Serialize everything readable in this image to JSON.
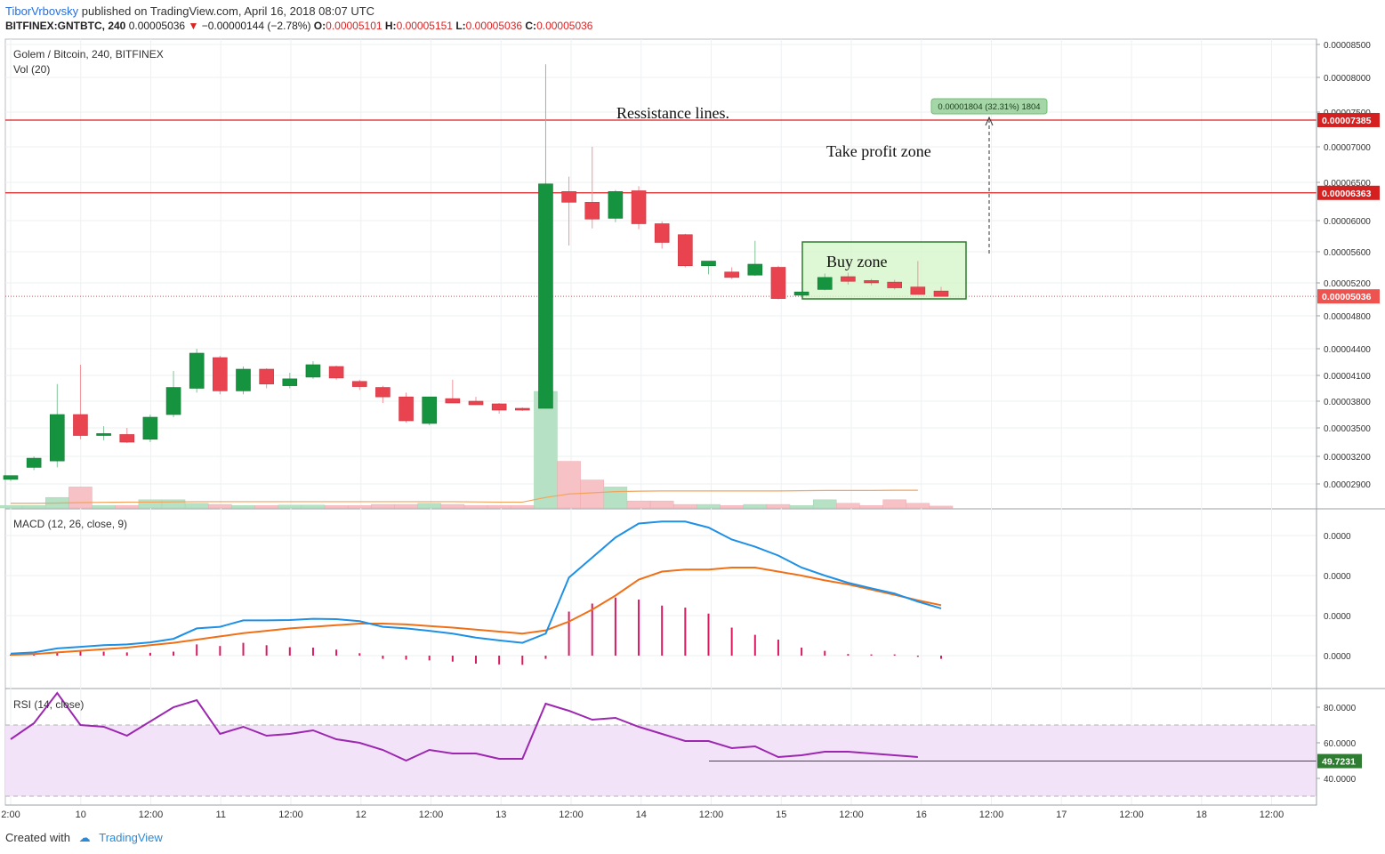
{
  "header": {
    "author": "TiborVrbovsky",
    "published_text": "published on TradingView.com, April 16, 2018 08:07 UTC",
    "symbol_line": {
      "symbol": "BITFINEX:GNTBTC, 240",
      "last": "0.00005036",
      "change": "−0.00000144 (−2.78%)",
      "open_label": "O:",
      "open": "0.00005101",
      "high_label": "H:",
      "high": "0.00005151",
      "low_label": "L:",
      "low": "0.00005036",
      "close_label": "C:",
      "close": "0.00005036"
    }
  },
  "footer": {
    "created_with": "Created with",
    "brand": "TradingView"
  },
  "colors": {
    "up": "#16933f",
    "down": "#e8434f",
    "macd": "#1e90e6",
    "signal": "#f07018",
    "rsi": "#9c27b0",
    "rsi_band": "#f3e3f8",
    "resistance": "#d62020",
    "buy_zone": "#d6f5c9"
  },
  "chart_data": [
    {
      "type": "candlestick",
      "title": "Golem / Bitcoin, 240, BITFINEX",
      "volume_label": "Vol (20)",
      "x_ticks": [
        "2:00",
        "10",
        "12:00",
        "11",
        "12:00",
        "12",
        "12:00",
        "13",
        "12:00",
        "14",
        "12:00",
        "15",
        "12:00",
        "16",
        "12:00",
        "17",
        "12:00",
        "18",
        "12:00"
      ],
      "y_ticks": [
        "0.00008500",
        "0.00008000",
        "0.00007500",
        "0.00007000",
        "0.00006500",
        "0.00006000",
        "0.00005600",
        "0.00005200",
        "0.00004800",
        "0.00004400",
        "0.00004100",
        "0.00003800",
        "0.00003500",
        "0.00003200",
        "0.00002900"
      ],
      "candles": [
        {
          "o": 2.95e-05,
          "h": 2.99e-05,
          "l": 2.93e-05,
          "c": 2.99e-05
        },
        {
          "o": 3.08e-05,
          "h": 3.2e-05,
          "l": 3.05e-05,
          "c": 3.18e-05
        },
        {
          "o": 3.15e-05,
          "h": 4e-05,
          "l": 3.08e-05,
          "c": 3.65e-05
        },
        {
          "o": 3.65e-05,
          "h": 4.22e-05,
          "l": 3.38e-05,
          "c": 3.42e-05
        },
        {
          "o": 3.42e-05,
          "h": 3.52e-05,
          "l": 3.37e-05,
          "c": 3.44e-05
        },
        {
          "o": 3.43e-05,
          "h": 3.5e-05,
          "l": 3.34e-05,
          "c": 3.35e-05
        },
        {
          "o": 3.38e-05,
          "h": 3.65e-05,
          "l": 3.35e-05,
          "c": 3.62e-05
        },
        {
          "o": 3.65e-05,
          "h": 4.15e-05,
          "l": 3.62e-05,
          "c": 3.96e-05
        },
        {
          "o": 3.95e-05,
          "h": 4.4e-05,
          "l": 3.9e-05,
          "c": 4.35e-05
        },
        {
          "o": 4.3e-05,
          "h": 4.32e-05,
          "l": 3.88e-05,
          "c": 3.92e-05
        },
        {
          "o": 3.92e-05,
          "h": 4.2e-05,
          "l": 3.88e-05,
          "c": 4.17e-05
        },
        {
          "o": 4.17e-05,
          "h": 4.18e-05,
          "l": 3.95e-05,
          "c": 4e-05
        },
        {
          "o": 3.98e-05,
          "h": 4.13e-05,
          "l": 3.95e-05,
          "c": 4.06e-05
        },
        {
          "o": 4.08e-05,
          "h": 4.26e-05,
          "l": 4.06e-05,
          "c": 4.22e-05
        },
        {
          "o": 4.2e-05,
          "h": 4.21e-05,
          "l": 4.05e-05,
          "c": 4.07e-05
        },
        {
          "o": 4.03e-05,
          "h": 4.05e-05,
          "l": 3.93e-05,
          "c": 3.97e-05
        },
        {
          "o": 3.96e-05,
          "h": 3.98e-05,
          "l": 3.78e-05,
          "c": 3.85e-05
        },
        {
          "o": 3.85e-05,
          "h": 3.9e-05,
          "l": 3.56e-05,
          "c": 3.58e-05
        },
        {
          "o": 3.55e-05,
          "h": 3.85e-05,
          "l": 3.53e-05,
          "c": 3.85e-05
        },
        {
          "o": 3.83e-05,
          "h": 4.05e-05,
          "l": 3.78e-05,
          "c": 3.78e-05
        },
        {
          "o": 3.8e-05,
          "h": 3.85e-05,
          "l": 3.76e-05,
          "c": 3.76e-05
        },
        {
          "o": 3.77e-05,
          "h": 3.78e-05,
          "l": 3.66e-05,
          "c": 3.7e-05
        },
        {
          "o": 3.72e-05,
          "h": 3.73e-05,
          "l": 3.69e-05,
          "c": 3.7e-05
        },
        {
          "o": 3.72e-05,
          "h": 8.2e-05,
          "l": 3.72e-05,
          "c": 6.48e-05
        },
        {
          "o": 6.38e-05,
          "h": 6.58e-05,
          "l": 5.68e-05,
          "c": 6.24e-05
        },
        {
          "o": 6.24e-05,
          "h": 7e-05,
          "l": 5.9e-05,
          "c": 6.02e-05
        },
        {
          "o": 6.03e-05,
          "h": 6.4e-05,
          "l": 5.98e-05,
          "c": 6.38e-05
        },
        {
          "o": 6.39e-05,
          "h": 6.45e-05,
          "l": 5.89e-05,
          "c": 5.96e-05
        },
        {
          "o": 5.96e-05,
          "h": 5.99e-05,
          "l": 5.64e-05,
          "c": 5.72e-05
        },
        {
          "o": 5.82e-05,
          "h": 5.83e-05,
          "l": 5.4e-05,
          "c": 5.42e-05
        },
        {
          "o": 5.42e-05,
          "h": 5.47e-05,
          "l": 5.31e-05,
          "c": 5.48e-05
        },
        {
          "o": 5.34e-05,
          "h": 5.4e-05,
          "l": 5.25e-05,
          "c": 5.27e-05
        },
        {
          "o": 5.3e-05,
          "h": 5.74e-05,
          "l": 5.29e-05,
          "c": 5.44e-05
        },
        {
          "o": 5.4e-05,
          "h": 5.42e-05,
          "l": 5e-05,
          "c": 5.01e-05
        },
        {
          "o": 5.05e-05,
          "h": 5.09e-05,
          "l": 5.03e-05,
          "c": 5.09e-05
        },
        {
          "o": 5.12e-05,
          "h": 5.32e-05,
          "l": 5.11e-05,
          "c": 5.27e-05
        },
        {
          "o": 5.28e-05,
          "h": 5.33e-05,
          "l": 5.18e-05,
          "c": 5.22e-05
        },
        {
          "o": 5.23e-05,
          "h": 5.25e-05,
          "l": 5.17e-05,
          "c": 5.2e-05
        },
        {
          "o": 5.21e-05,
          "h": 5.24e-05,
          "l": 5.12e-05,
          "c": 5.14e-05
        },
        {
          "o": 5.15e-05,
          "h": 5.48e-05,
          "l": 5.06e-05,
          "c": 5.06e-05
        },
        {
          "o": 5.101e-05,
          "h": 5.151e-05,
          "l": 5.036e-05,
          "c": 5.036e-05
        }
      ],
      "volume": [
        0.01,
        0.01,
        0.045,
        0.09,
        0.01,
        0.01,
        0.035,
        0.035,
        0.02,
        0.015,
        0.01,
        0.01,
        0.012,
        0.012,
        0.01,
        0.01,
        0.015,
        0.015,
        0.02,
        0.015,
        0.01,
        0.01,
        0.01,
        0.5,
        0.2,
        0.12,
        0.09,
        0.03,
        0.03,
        0.015,
        0.015,
        0.01,
        0.015,
        0.015,
        0.01,
        0.035,
        0.02,
        0.01,
        0.035,
        0.02,
        0.008
      ],
      "vol_ma": [
        0.02,
        0.02,
        0.021,
        0.023,
        0.024,
        0.025,
        0.025,
        0.026,
        0.027,
        0.027,
        0.027,
        0.027,
        0.027,
        0.027,
        0.027,
        0.027,
        0.027,
        0.027,
        0.027,
        0.027,
        0.026,
        0.025,
        0.025,
        0.045,
        0.06,
        0.065,
        0.07,
        0.072,
        0.073,
        0.073,
        0.073,
        0.073,
        0.073,
        0.073,
        0.074,
        0.075,
        0.075,
        0.075,
        0.076,
        0.076
      ],
      "resistance_lines": [
        {
          "price": 7.385e-05,
          "label": "0.00007385"
        },
        {
          "price": 6.363e-05,
          "label": "0.00006363"
        }
      ],
      "last_price": {
        "price": 5.036e-05,
        "label": "0.00005036"
      },
      "annotations": {
        "resistance_text": "Ressistance lines.",
        "take_profit_text": "Take profit zone",
        "buy_zone_text": "Buy zone",
        "measure_label": "0.00001804 (32.31%) 1804"
      }
    },
    {
      "type": "line",
      "title": "MACD (12, 26, close, 9)",
      "y_ticks": [
        "0.0000",
        "0.0000",
        "0.0000",
        "0.0000"
      ],
      "macd": [
        0.05,
        0.08,
        0.18,
        0.22,
        0.26,
        0.28,
        0.33,
        0.42,
        0.68,
        0.72,
        0.88,
        0.88,
        0.89,
        0.92,
        0.91,
        0.86,
        0.72,
        0.68,
        0.62,
        0.55,
        0.45,
        0.38,
        0.32,
        0.55,
        1.95,
        2.45,
        2.95,
        3.3,
        3.35,
        3.35,
        3.2,
        2.9,
        2.72,
        2.5,
        2.2,
        2.0,
        1.82,
        1.68,
        1.55,
        1.35,
        1.18
      ],
      "signal": [
        0.02,
        0.04,
        0.08,
        0.12,
        0.16,
        0.2,
        0.26,
        0.32,
        0.4,
        0.48,
        0.56,
        0.62,
        0.68,
        0.72,
        0.76,
        0.8,
        0.8,
        0.78,
        0.74,
        0.7,
        0.65,
        0.6,
        0.55,
        0.63,
        0.85,
        1.15,
        1.5,
        1.9,
        2.1,
        2.15,
        2.15,
        2.2,
        2.2,
        2.1,
        2.0,
        1.88,
        1.78,
        1.65,
        1.52,
        1.38,
        1.26
      ],
      "hist": [
        0.03,
        0.04,
        0.1,
        0.1,
        0.1,
        0.08,
        0.07,
        0.1,
        0.28,
        0.24,
        0.32,
        0.26,
        0.21,
        0.2,
        0.15,
        0.06,
        -0.08,
        -0.1,
        -0.12,
        -0.15,
        -0.2,
        -0.22,
        -0.23,
        -0.08,
        1.1,
        1.3,
        1.45,
        1.4,
        1.25,
        1.2,
        1.05,
        0.7,
        0.52,
        0.4,
        0.2,
        0.12,
        0.04,
        0.03,
        0.03,
        -0.03,
        -0.08
      ]
    },
    {
      "type": "line",
      "title": "RSI (14, close)",
      "y_ticks": [
        "80.0000",
        "60.0000",
        "40.0000"
      ],
      "rsi_values": [
        62,
        71,
        88,
        70,
        69,
        64,
        72,
        80,
        84,
        65,
        69,
        64,
        65,
        67,
        62,
        60,
        56,
        50,
        56,
        54,
        54,
        51,
        51,
        82,
        78,
        73,
        74,
        69,
        65,
        61,
        61,
        57,
        58,
        52,
        53,
        55,
        55,
        54,
        53,
        52
      ],
      "current": "49.7231",
      "upper_band": 70,
      "lower_band": 30
    }
  ]
}
